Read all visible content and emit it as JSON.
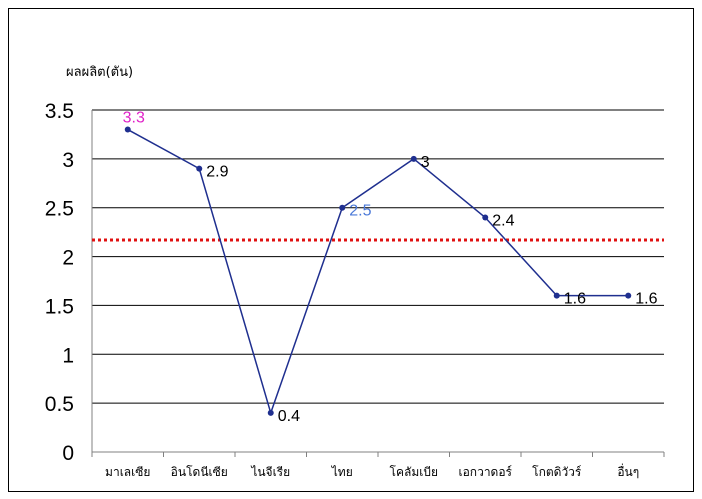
{
  "chart_data": {
    "type": "line",
    "ylabel": "ผลผลิต(ตัน)",
    "categories": [
      "มาเลเซีย",
      "อินโดนีเซีย",
      "ไนจีเรีย",
      "ไทย",
      "โคลัมเบีย",
      "เอกวาดอร์",
      "โกตดิวัวร์",
      "อื่นๆ"
    ],
    "series": [
      {
        "values": [
          3.3,
          2.9,
          0.4,
          2.5,
          3.0,
          2.4,
          1.6,
          1.6
        ],
        "color": "#1f2f8f"
      }
    ],
    "data_labels": [
      "3.3",
      "2.9",
      "0.4",
      "2.5",
      "3",
      "2.4",
      "1.6",
      "1.6"
    ],
    "label_colors": [
      "#e020c8",
      "#000000",
      "#000000",
      "#4a78d8",
      "#000000",
      "#000000",
      "#000000",
      "#000000"
    ],
    "y_ticks": [
      "0",
      "0.5",
      "1",
      "1.5",
      "2",
      "2.5",
      "3",
      "3.5"
    ],
    "ylim": [
      0,
      3.5
    ],
    "reference_line": {
      "value": 2.17,
      "color": "#e01010",
      "style": "dotted"
    },
    "grid": true,
    "legend": "none"
  }
}
